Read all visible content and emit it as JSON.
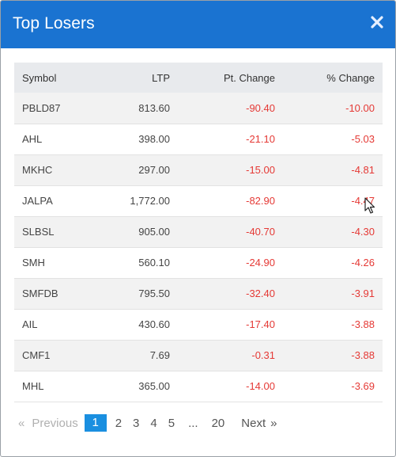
{
  "modal": {
    "title": "Top Losers"
  },
  "table": {
    "headers": [
      "Symbol",
      "LTP",
      "Pt. Change",
      "% Change"
    ],
    "rows": [
      [
        "PBLD87",
        "813.60",
        "-90.40",
        "-10.00"
      ],
      [
        "AHL",
        "398.00",
        "-21.10",
        "-5.03"
      ],
      [
        "MKHC",
        "297.00",
        "-15.00",
        "-4.81"
      ],
      [
        "JALPA",
        "1,772.00",
        "-82.90",
        "-4.47"
      ],
      [
        "SLBSL",
        "905.00",
        "-40.70",
        "-4.30"
      ],
      [
        "SMH",
        "560.10",
        "-24.90",
        "-4.26"
      ],
      [
        "SMFDB",
        "795.50",
        "-32.40",
        "-3.91"
      ],
      [
        "AIL",
        "430.60",
        "-17.40",
        "-3.88"
      ],
      [
        "CMF1",
        "7.69",
        "-0.31",
        "-3.88"
      ],
      [
        "MHL",
        "365.00",
        "-14.00",
        "-3.69"
      ]
    ]
  },
  "pagination": {
    "prev_arrow": "«",
    "prev_label": "Previous",
    "pages": [
      "1",
      "2",
      "3",
      "4",
      "5"
    ],
    "ellipsis": "...",
    "last_page": "20",
    "next_label": "Next",
    "next_arrow": "»",
    "current": "1"
  },
  "colors": {
    "header_bg": "#1a73d1",
    "negative": "#e53935",
    "active_page": "#1a8fe0"
  },
  "icons": {
    "close": "close-icon",
    "cursor": "mouse-cursor-icon"
  }
}
